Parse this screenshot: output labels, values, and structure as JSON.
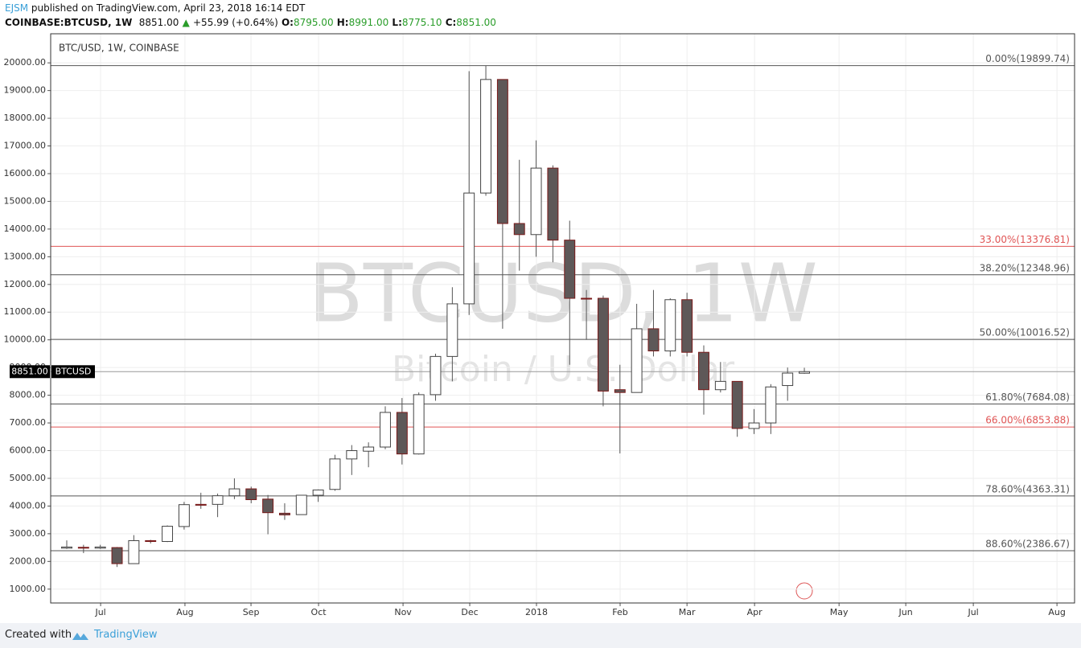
{
  "header": {
    "author": "EJSM",
    "published": "published on TradingView.com, April 23, 2018 16:14 EDT",
    "symbol": "COINBASE:BTCUSD, 1W",
    "last": "8851.00",
    "change": "+55.99 (+0.64%)",
    "ohlc": [
      {
        "label": "O:",
        "value": "8795.00"
      },
      {
        "label": "H:",
        "value": "8991.00"
      },
      {
        "label": "L:",
        "value": "8775.10"
      },
      {
        "label": "C:",
        "value": "8851.00"
      }
    ]
  },
  "footer": {
    "created_with": "Created with",
    "brand": "TradingView"
  },
  "chart_data": {
    "type": "candlestick",
    "title": "BTC/USD, 1W, COINBASE",
    "watermark_title": "BTCUSD, 1W",
    "watermark_subtitle": "Bitcoin / U.S. Dollar",
    "x": [
      0,
      1,
      2,
      3,
      4,
      5,
      6,
      7,
      8,
      9,
      10,
      11,
      12,
      13,
      14,
      15,
      16,
      17,
      18,
      19,
      20,
      21,
      22,
      23,
      24,
      25,
      26,
      27,
      28,
      29,
      30,
      31,
      32,
      33,
      34,
      35,
      36,
      37,
      38,
      39,
      40,
      41,
      42,
      43,
      44
    ],
    "open": [
      2480,
      2510,
      2480,
      2500,
      1920,
      2750,
      2720,
      3260,
      4060,
      4060,
      4370,
      4620,
      4250,
      3740,
      3690,
      4390,
      4600,
      5700,
      5980,
      6130,
      7380,
      5880,
      8020,
      9400,
      11300,
      15300,
      19400,
      14200,
      13800,
      16200,
      13600,
      11500,
      11500,
      8200,
      8100,
      10400,
      9600,
      11450,
      9550,
      8200,
      8500,
      6800,
      7000,
      8350,
      8795
    ],
    "high": [
      2760,
      2600,
      2600,
      2520,
      2950,
      2780,
      3300,
      4150,
      4480,
      4450,
      5000,
      4700,
      4400,
      4100,
      4400,
      4600,
      5850,
      6200,
      6300,
      7600,
      7900,
      8100,
      9500,
      11900,
      19700,
      19900,
      19400,
      16500,
      17200,
      16300,
      14300,
      11800,
      11600,
      9100,
      11300,
      11800,
      11500,
      11700,
      9800,
      9200,
      8500,
      7500,
      8400,
      9000,
      8991
    ],
    "low": [
      2450,
      2300,
      2450,
      1800,
      1920,
      2650,
      2700,
      3150,
      3900,
      3600,
      4250,
      4100,
      2980,
      3500,
      3680,
      4150,
      4550,
      5120,
      5400,
      6050,
      5500,
      5860,
      7800,
      8500,
      10900,
      15200,
      10400,
      12500,
      13000,
      12800,
      9100,
      10000,
      7600,
      5900,
      8100,
      9400,
      9400,
      9400,
      7300,
      8100,
      6500,
      6600,
      6600,
      7800,
      8775.1
    ],
    "close": [
      2520,
      2480,
      2520,
      1920,
      2750,
      2720,
      3270,
      4050,
      4030,
      4370,
      4620,
      4230,
      3760,
      3680,
      4390,
      4580,
      5700,
      6000,
      6130,
      7380,
      5880,
      8020,
      9400,
      11300,
      15300,
      19400,
      14200,
      13800,
      16200,
      13600,
      11500,
      11480,
      8150,
      8100,
      10400,
      9600,
      11450,
      9550,
      8200,
      8500,
      6800,
      7000,
      8300,
      8800,
      8851
    ],
    "up_color": "#ffffff",
    "down_color": "#5e5858",
    "up_border": "#444444",
    "down_border": "#7a1a1a",
    "xlim": [
      -0.96,
      60.12
    ],
    "xticks": [
      {
        "value": 2.02,
        "label": "Jul"
      },
      {
        "value": 7.05,
        "label": "Aug"
      },
      {
        "value": 10.99,
        "label": "Sep"
      },
      {
        "value": 15.02,
        "label": "Oct"
      },
      {
        "value": 20.06,
        "label": "Nov"
      },
      {
        "value": 24.04,
        "label": "Dec"
      },
      {
        "value": 28.02,
        "label": "2018"
      },
      {
        "value": 33.01,
        "label": "Feb"
      },
      {
        "value": 37.0,
        "label": "Mar"
      },
      {
        "value": 41.03,
        "label": "Apr"
      },
      {
        "value": 46.07,
        "label": "May"
      },
      {
        "value": 50.05,
        "label": "Jun"
      },
      {
        "value": 54.08,
        "label": "Jul"
      },
      {
        "value": 59.07,
        "label": "Aug"
      }
    ],
    "ylim": [
      500,
      21050
    ],
    "yticks": [
      {
        "value": 1000,
        "label": "1000.00"
      },
      {
        "value": 2000,
        "label": "2000.00"
      },
      {
        "value": 3000,
        "label": "3000.00"
      },
      {
        "value": 4000,
        "label": "4000.00"
      },
      {
        "value": 5000,
        "label": "5000.00"
      },
      {
        "value": 6000,
        "label": "6000.00"
      },
      {
        "value": 7000,
        "label": "7000.00"
      },
      {
        "value": 8000,
        "label": "8000.00"
      },
      {
        "value": 9000,
        "label": "9000.00"
      },
      {
        "value": 10000,
        "label": "10000.00"
      },
      {
        "value": 11000,
        "label": "11000.00"
      },
      {
        "value": 12000,
        "label": "12000.00"
      },
      {
        "value": 13000,
        "label": "13000.00"
      },
      {
        "value": 14000,
        "label": "14000.00"
      },
      {
        "value": 15000,
        "label": "15000.00"
      },
      {
        "value": 16000,
        "label": "16000.00"
      },
      {
        "value": 17000,
        "label": "17000.00"
      },
      {
        "value": 18000,
        "label": "18000.00"
      },
      {
        "value": 19000,
        "label": "19000.00"
      },
      {
        "value": 20000,
        "label": "20000.00"
      }
    ],
    "grid": true,
    "fib_levels": [
      {
        "value": 19899.74,
        "label": "0.00%(19899.74)",
        "color": "#555555"
      },
      {
        "value": 13376.81,
        "label": "33.00%(13376.81)",
        "color": "#e05555"
      },
      {
        "value": 12348.96,
        "label": "38.20%(12348.96)",
        "color": "#555555"
      },
      {
        "value": 10016.52,
        "label": "50.00%(10016.52)",
        "color": "#555555"
      },
      {
        "value": 7684.08,
        "label": "61.80%(7684.08)",
        "color": "#555555"
      },
      {
        "value": 6853.88,
        "label": "66.00%(6853.88)",
        "color": "#e05555"
      },
      {
        "value": 4363.31,
        "label": "78.60%(4363.31)",
        "color": "#555555"
      },
      {
        "value": 2386.67,
        "label": "88.60%(2386.67)",
        "color": "#555555"
      }
    ],
    "last_price": {
      "value": 8851,
      "label": "8851.00"
    },
    "price_tag": "BTCUSD"
  }
}
